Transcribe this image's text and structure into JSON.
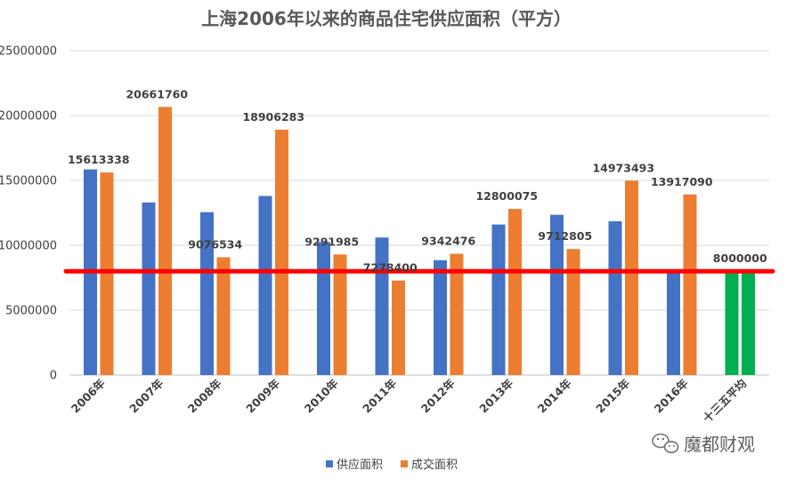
{
  "chart_data": {
    "type": "bar",
    "title": "上海2006年以来的商品住宅供应面积（平方）",
    "categories": [
      "2006年",
      "2007年",
      "2008年",
      "2009年",
      "2010年",
      "2011年",
      "2012年",
      "2013年",
      "2014年",
      "2015年",
      "2016年",
      "十三五平均"
    ],
    "series": [
      {
        "name": "供应面积",
        "color": "#4472C4",
        "values": [
          15850000,
          13300000,
          12550000,
          13800000,
          10250000,
          10600000,
          8850000,
          11600000,
          12350000,
          11850000,
          7900000,
          8000000
        ]
      },
      {
        "name": "成交面积",
        "color": "#ED7D31",
        "values": [
          15613338,
          20661760,
          9076534,
          18906283,
          9291985,
          7278400,
          9342476,
          12800075,
          9712805,
          14973493,
          13917090,
          8000000
        ]
      }
    ],
    "highlight": {
      "category": "十三五平均",
      "color": "#00B050"
    },
    "data_labels": [
      {
        "text": "15613338",
        "category": 0,
        "series": 1
      },
      {
        "text": "20661760",
        "category": 1,
        "series": 1
      },
      {
        "text": "9076534",
        "category": 2,
        "series": 1
      },
      {
        "text": "18906283",
        "category": 3,
        "series": 1
      },
      {
        "text": "9291985",
        "category": 4,
        "series": 1
      },
      {
        "text": "7278400",
        "category": 5,
        "series": 1
      },
      {
        "text": "9342476",
        "category": 6,
        "series": 1
      },
      {
        "text": "12800075",
        "category": 7,
        "series": 1
      },
      {
        "text": "9712805",
        "category": 8,
        "series": 1
      },
      {
        "text": "14973493",
        "category": 9,
        "series": 1
      },
      {
        "text": "13917090",
        "category": 10,
        "series": 1
      },
      {
        "text": "8000000",
        "category": 11,
        "series": 1
      }
    ],
    "reference_line": {
      "value": 8000000,
      "color": "#FF0000"
    },
    "ylim": [
      0,
      25000000
    ],
    "yticks": [
      0,
      5000000,
      10000000,
      15000000,
      20000000,
      25000000
    ],
    "ytick_labels": [
      "0",
      "5000000",
      "10000000",
      "15000000",
      "20000000",
      "25000000"
    ],
    "xlabel": "",
    "ylabel": "",
    "grid": true,
    "legend_position": "bottom",
    "legend": [
      "供应面积",
      "成交面积"
    ]
  },
  "watermark": {
    "text": "魔都财观",
    "icon": "wechat-icon"
  }
}
